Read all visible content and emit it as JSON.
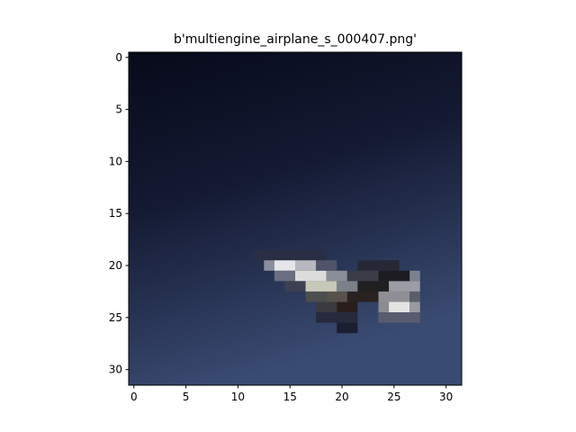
{
  "chart_data": {
    "type": "image",
    "title": "b'multiengine_airplane_s_000407.png'",
    "xlim": [
      -0.5,
      31.5
    ],
    "ylim": [
      31.5,
      -0.5
    ],
    "xticks": [
      0,
      5,
      10,
      15,
      20,
      25,
      30
    ],
    "yticks": [
      0,
      5,
      10,
      15,
      20,
      25,
      30
    ]
  }
}
